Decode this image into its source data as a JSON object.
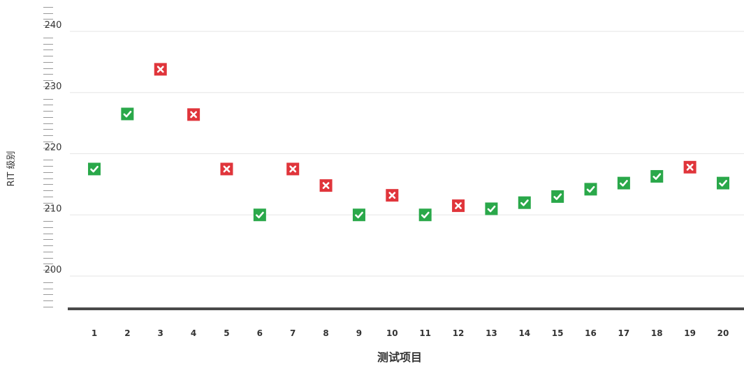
{
  "chart_data": {
    "type": "scatter",
    "title": "",
    "xlabel": "测试项目",
    "ylabel": "RIT 级别",
    "ylim": [
      195,
      244
    ],
    "yticks": [
      200,
      210,
      220,
      230,
      240
    ],
    "x": [
      1,
      2,
      3,
      4,
      5,
      6,
      7,
      8,
      9,
      10,
      11,
      12,
      13,
      14,
      15,
      16,
      17,
      18,
      19,
      20
    ],
    "y": [
      217.5,
      226.5,
      233.8,
      226.4,
      217.5,
      210,
      217.5,
      214.8,
      210,
      213.2,
      210,
      211.5,
      211,
      212,
      213,
      214.2,
      215.2,
      216.3,
      217.8,
      215.2
    ],
    "correct": [
      true,
      true,
      false,
      false,
      false,
      true,
      false,
      false,
      true,
      false,
      true,
      false,
      true,
      true,
      true,
      true,
      true,
      true,
      false,
      true
    ],
    "grid": "horizontal",
    "legend": "none",
    "colors": {
      "correct": "#2aa84a",
      "incorrect": "#e0353b",
      "grid": "#e6e6e6",
      "baseline": "#4a4a4a",
      "text": "#333333"
    },
    "icons": {
      "correct": "check-icon",
      "incorrect": "x-icon"
    }
  }
}
